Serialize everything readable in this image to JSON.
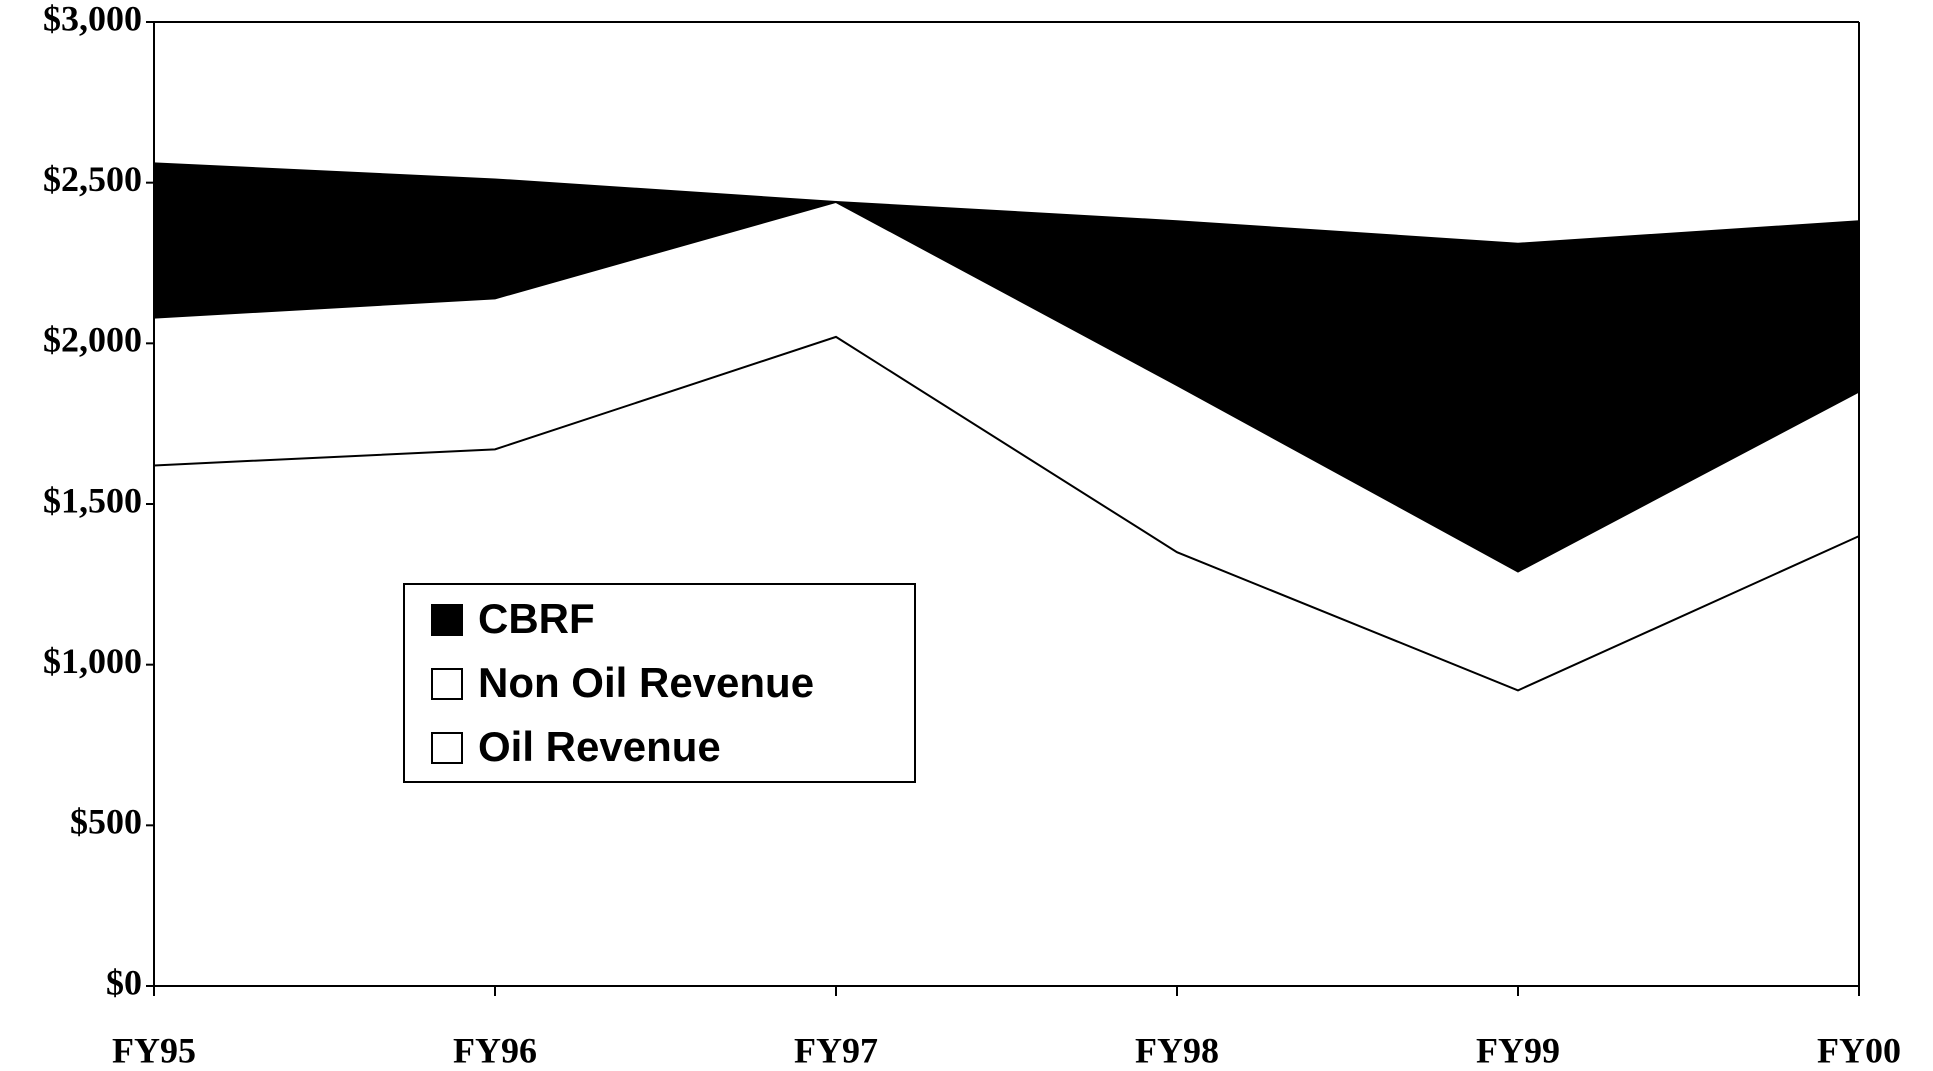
{
  "chart_data": {
    "type": "stacked_area",
    "categories": [
      "FY95",
      "FY96",
      "FY97",
      "FY98",
      "FY99",
      "FY00"
    ],
    "series": [
      {
        "name": "Oil Revenue",
        "color": "#ffffff",
        "values": [
          1620,
          1670,
          2020,
          1350,
          920,
          1400
        ]
      },
      {
        "name": "Non Oil Revenue",
        "color": "#ffffff",
        "values": [
          460,
          470,
          420,
          520,
          370,
          450
        ]
      },
      {
        "name": "CBRF",
        "color": "#000000",
        "values": [
          480,
          370,
          0,
          510,
          1020,
          530
        ]
      }
    ],
    "ylim": [
      0,
      3000
    ],
    "yticks": [
      {
        "value": 0,
        "label": "$0"
      },
      {
        "value": 500,
        "label": "$500"
      },
      {
        "value": 1000,
        "label": "$1,000"
      },
      {
        "value": 1500,
        "label": "$1,500"
      },
      {
        "value": 2000,
        "label": "$2,000"
      },
      {
        "value": 2500,
        "label": "$2,500"
      },
      {
        "value": 3000,
        "label": "$3,000"
      }
    ],
    "grid": false,
    "legend": "left"
  }
}
